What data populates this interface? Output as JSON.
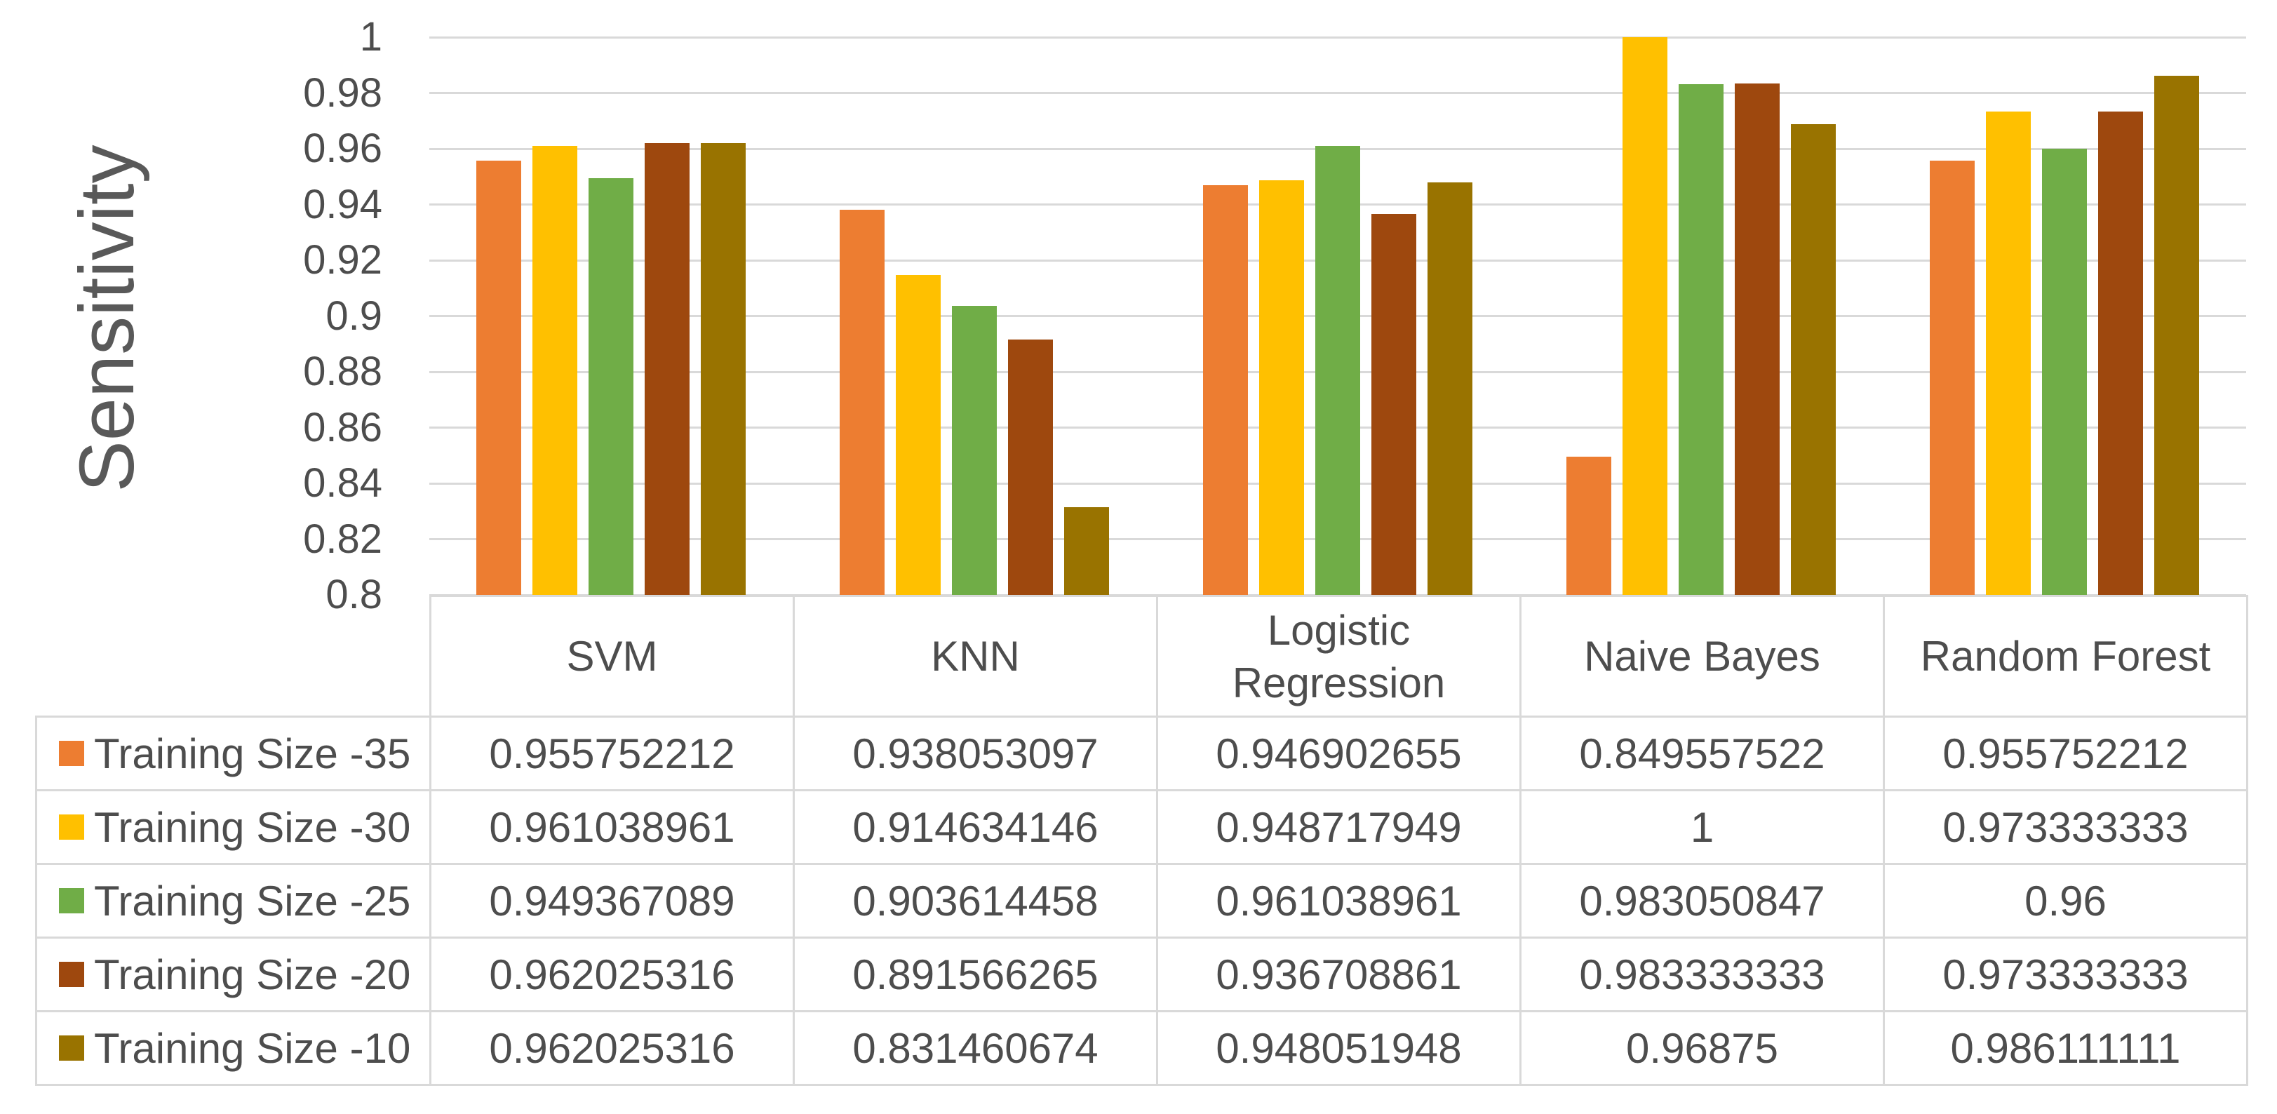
{
  "chart_data": {
    "type": "bar",
    "title": "",
    "xlabel": "",
    "ylabel": "Sensitivity",
    "categories": [
      "SVM",
      "KNN",
      "Logistic Regression",
      "Naive Bayes",
      "Random Forest"
    ],
    "series": [
      {
        "name": "Training Size -35",
        "color": "#ED7D31",
        "values": [
          0.955752212,
          0.938053097,
          0.946902655,
          0.849557522,
          0.955752212
        ]
      },
      {
        "name": "Training Size -30",
        "color": "#FFC000",
        "values": [
          0.961038961,
          0.914634146,
          0.948717949,
          1,
          0.973333333
        ]
      },
      {
        "name": "Training Size -25",
        "color": "#70AD47",
        "values": [
          0.949367089,
          0.903614458,
          0.961038961,
          0.983050847,
          0.96
        ]
      },
      {
        "name": "Training Size -20",
        "color": "#9E480E",
        "values": [
          0.962025316,
          0.891566265,
          0.936708861,
          0.983333333,
          0.973333333
        ]
      },
      {
        "name": "Training Size -10",
        "color": "#997300",
        "values": [
          0.962025316,
          0.831460674,
          0.948051948,
          0.96875,
          0.986111111
        ]
      }
    ],
    "ylim": [
      0.8,
      1
    ],
    "ytick_step": 0.02,
    "ytick_labels": [
      "1",
      "0.98",
      "0.96",
      "0.94",
      "0.92",
      "0.9",
      "0.88",
      "0.86",
      "0.84",
      "0.82",
      "0.8"
    ],
    "grid": true,
    "legend_position": "data-table-left-column",
    "styles": {
      "gridline_color": "#D9D9D9",
      "table_border_color": "#D9D9D9",
      "axis_text_color": "#595959",
      "table_text_color": "#4D4D4D"
    }
  }
}
